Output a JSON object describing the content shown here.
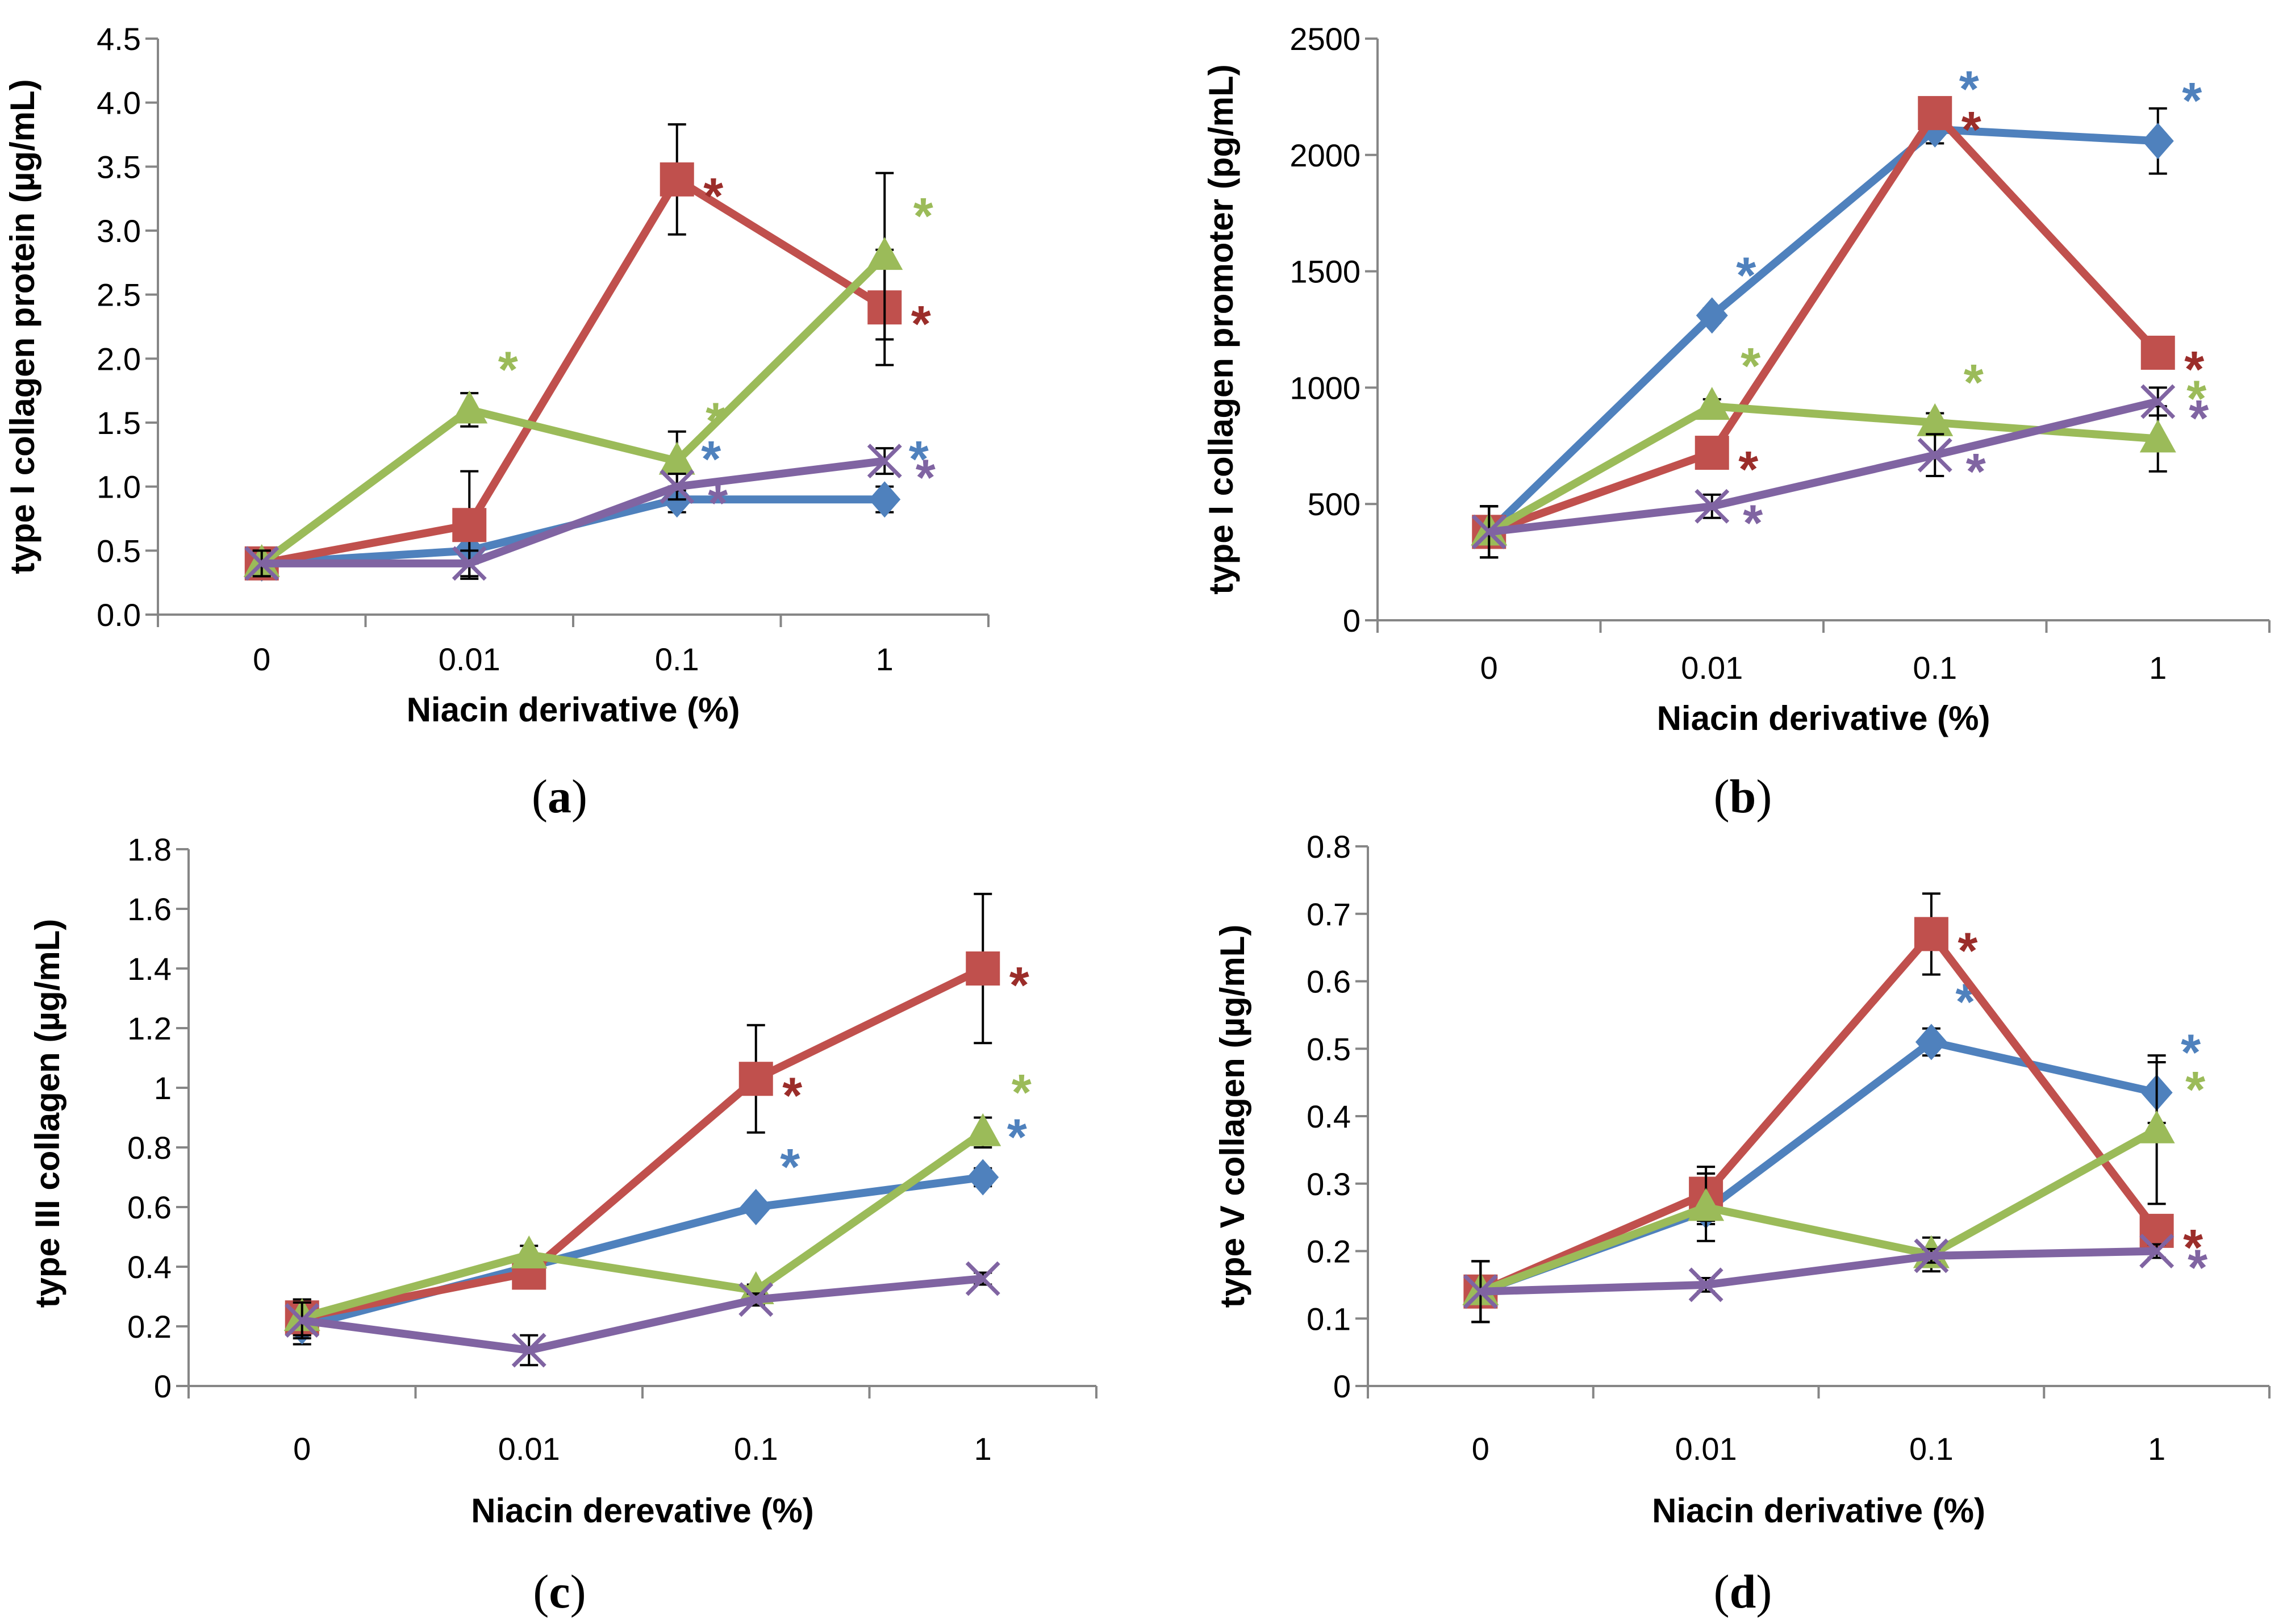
{
  "colors": {
    "series_a": "#4F81BD",
    "series_b": "#C0504D",
    "series_c": "#9BBB59",
    "series_d": "#8064A2",
    "star_blue": "#4F81BD",
    "star_red": "#9B2D2A",
    "star_green": "#9BBB59",
    "star_purple": "#8064A2"
  },
  "chart_data": [
    {
      "panel": "(a)",
      "panel_paren_open": "(",
      "panel_letter": "a",
      "panel_paren_close": ")",
      "type": "line",
      "xlabel": "Niacin derivative (%)",
      "ylabel": "type I collagen protein (µg/mL)",
      "categories": [
        "0",
        "0.01",
        "0.1",
        "1"
      ],
      "ylim": [
        0,
        4.5
      ],
      "ystep": 0.5,
      "ydecimals": 1,
      "series": [
        {
          "name": "blue",
          "marker": "diamond",
          "values": [
            0.4,
            0.5,
            0.9,
            0.9
          ],
          "errors": [
            0.1,
            0.1,
            0.1,
            0.1
          ],
          "stars": [
            false,
            false,
            true,
            true
          ]
        },
        {
          "name": "red",
          "marker": "square",
          "values": [
            0.4,
            0.7,
            3.4,
            2.4
          ],
          "errors": [
            0.1,
            0.42,
            0.43,
            0.45
          ],
          "stars": [
            false,
            false,
            true,
            true
          ]
        },
        {
          "name": "green",
          "marker": "triangle",
          "values": [
            0.4,
            1.6,
            1.2,
            2.8
          ],
          "errors": [
            0.1,
            0.13,
            0.23,
            0.65
          ],
          "stars": [
            false,
            true,
            true,
            true
          ]
        },
        {
          "name": "purple",
          "marker": "x",
          "values": [
            0.4,
            0.4,
            1.0,
            1.2
          ],
          "errors": [
            0.1,
            0.1,
            0.1,
            0.1
          ],
          "stars": [
            false,
            false,
            true,
            true
          ]
        }
      ]
    },
    {
      "panel": "(b)",
      "panel_paren_open": "(",
      "panel_letter": "b",
      "panel_paren_close": ")",
      "type": "line",
      "xlabel": "Niacin derivative (%)",
      "ylabel": "type I collagen promoter (pg/mL)",
      "categories": [
        "0",
        "0.01",
        "0.1",
        "1"
      ],
      "ylim": [
        0,
        2500
      ],
      "ystep": 500,
      "ydecimals": 0,
      "series": [
        {
          "name": "blue",
          "marker": "diamond",
          "values": [
            380,
            1310,
            2110,
            2060
          ],
          "errors": [
            110,
            30,
            60,
            140
          ],
          "stars": [
            false,
            true,
            true,
            true
          ]
        },
        {
          "name": "red",
          "marker": "square",
          "values": [
            380,
            720,
            2180,
            1150
          ],
          "errors": [
            110,
            30,
            30,
            40
          ],
          "stars": [
            false,
            true,
            true,
            true
          ]
        },
        {
          "name": "green",
          "marker": "triangle",
          "values": [
            380,
            920,
            850,
            780
          ],
          "errors": [
            110,
            30,
            40,
            140
          ],
          "stars": [
            false,
            true,
            true,
            true
          ]
        },
        {
          "name": "purple",
          "marker": "x",
          "values": [
            380,
            490,
            710,
            940
          ],
          "errors": [
            110,
            50,
            90,
            60
          ],
          "stars": [
            false,
            true,
            true,
            true
          ]
        }
      ]
    },
    {
      "panel": "(c)",
      "panel_paren_open": "(",
      "panel_letter": "c",
      "panel_paren_close": ")",
      "type": "line",
      "xlabel": "Niacin derevative (%)",
      "ylabel": "type III collagen (µg/mL)",
      "categories": [
        "0",
        "0.01",
        "0.1",
        "1"
      ],
      "ylim": [
        0,
        1.8
      ],
      "ystep": 0.2,
      "ydecimals": -1,
      "series": [
        {
          "name": "blue",
          "marker": "diamond",
          "values": [
            0.2,
            0.4,
            0.6,
            0.7
          ],
          "errors": [
            0.06,
            0.04,
            0.02,
            0.03
          ],
          "stars": [
            false,
            false,
            true,
            true
          ]
        },
        {
          "name": "red",
          "marker": "square",
          "values": [
            0.23,
            0.38,
            1.03,
            1.4
          ],
          "errors": [
            0.06,
            0.03,
            0.18,
            0.25
          ],
          "stars": [
            false,
            false,
            true,
            true
          ]
        },
        {
          "name": "green",
          "marker": "triangle",
          "values": [
            0.23,
            0.44,
            0.32,
            0.85
          ],
          "errors": [
            0.06,
            0.03,
            0.02,
            0.05
          ],
          "stars": [
            false,
            false,
            false,
            true
          ]
        },
        {
          "name": "purple",
          "marker": "x",
          "values": [
            0.22,
            0.12,
            0.29,
            0.36
          ],
          "errors": [
            0.06,
            0.05,
            0.02,
            0.02
          ],
          "stars": [
            false,
            false,
            false,
            false
          ]
        }
      ]
    },
    {
      "panel": "(d)",
      "panel_paren_open": "(",
      "panel_letter": "d",
      "panel_paren_close": ")",
      "type": "line",
      "xlabel": "Niacin derivative (%)",
      "ylabel": "type V collagen (µg/mL)",
      "categories": [
        "0",
        "0.01",
        "0.1",
        "1"
      ],
      "ylim": [
        0,
        0.8
      ],
      "ystep": 0.1,
      "ydecimals": -1,
      "series": [
        {
          "name": "blue",
          "marker": "diamond",
          "values": [
            0.14,
            0.26,
            0.51,
            0.435
          ],
          "errors": [
            0.045,
            0.02,
            0.02,
            0.045
          ],
          "stars": [
            false,
            false,
            true,
            true
          ]
        },
        {
          "name": "red",
          "marker": "square",
          "values": [
            0.14,
            0.285,
            0.67,
            0.23
          ],
          "errors": [
            0.045,
            0.04,
            0.06,
            0.02
          ],
          "stars": [
            false,
            false,
            true,
            true
          ]
        },
        {
          "name": "green",
          "marker": "triangle",
          "values": [
            0.14,
            0.265,
            0.195,
            0.38
          ],
          "errors": [
            0.045,
            0.05,
            0.025,
            0.11
          ],
          "stars": [
            false,
            false,
            false,
            true
          ]
        },
        {
          "name": "purple",
          "marker": "x",
          "values": [
            0.14,
            0.15,
            0.193,
            0.2
          ],
          "errors": [
            0.045,
            0.01,
            0.01,
            0.01
          ],
          "stars": [
            false,
            false,
            false,
            true
          ]
        }
      ]
    }
  ]
}
